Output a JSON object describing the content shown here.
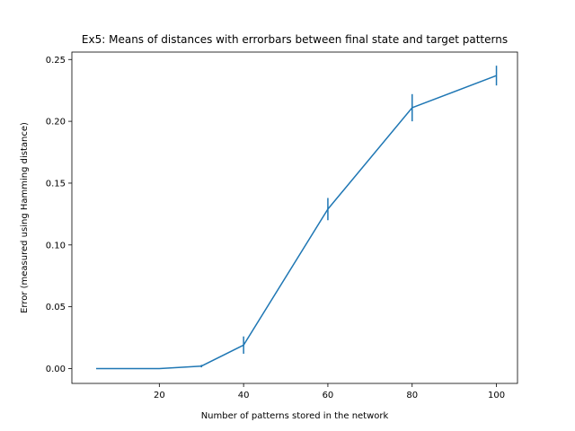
{
  "chart_data": {
    "type": "line",
    "title": "Ex5: Means of distances with errorbars between final state and target patterns",
    "xlabel": "Number of patterns stored in the network",
    "ylabel": "Error (measured using Hamming distance)",
    "xlim": [
      -0.75,
      105.0
    ],
    "ylim": [
      -0.012,
      0.256
    ],
    "xticks": [
      20,
      40,
      60,
      80,
      100
    ],
    "xtick_labels": [
      "20",
      "40",
      "60",
      "80",
      "100"
    ],
    "yticks": [
      0.0,
      0.05,
      0.1,
      0.15,
      0.2,
      0.25
    ],
    "ytick_labels": [
      "0.00",
      "0.05",
      "0.10",
      "0.15",
      "0.20",
      "0.25"
    ],
    "grid": false,
    "series": [
      {
        "color": "#1f77b4",
        "x": [
          5,
          20,
          30,
          40,
          60,
          80,
          100
        ],
        "y": [
          0.0,
          0.0,
          0.002,
          0.019,
          0.129,
          0.211,
          0.237
        ],
        "yerr": [
          0.0,
          0.0,
          0.001,
          0.007,
          0.009,
          0.011,
          0.008
        ]
      }
    ]
  }
}
